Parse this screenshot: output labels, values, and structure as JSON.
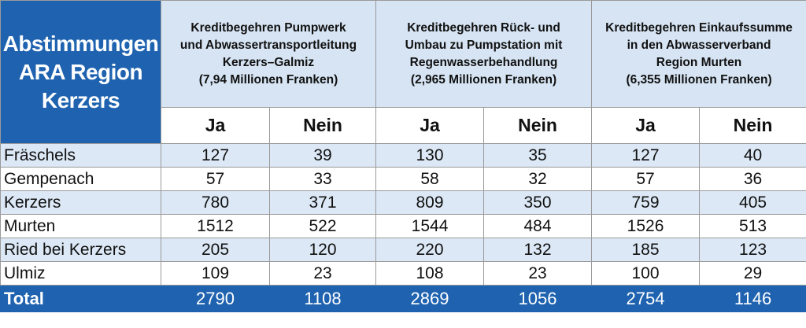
{
  "title": [
    "Abstimmungen",
    "ARA Region",
    "Kerzers"
  ],
  "groups": [
    {
      "lines": [
        "Kreditbegehren Pumpwerk",
        "und Abwassertransportleitung",
        "Kerzers–Galmiz",
        "(7,94 Millionen Franken)"
      ]
    },
    {
      "lines": [
        "Kreditbegehren Rück- und",
        "Umbau zu Pumpstation mit",
        "Regenwasserbehandlung",
        "(2,965 Millionen Franken)"
      ]
    },
    {
      "lines": [
        "Kreditbegehren Einkaufssumme",
        "in den Abwasserverband",
        "Region Murten",
        "(6,355 Millionen Franken)"
      ]
    }
  ],
  "columns": [
    "Ja",
    "Nein",
    "Ja",
    "Nein",
    "Ja",
    "Nein"
  ],
  "rows": [
    {
      "label": "Fräschels",
      "values": [
        "127",
        "39",
        "130",
        "35",
        "127",
        "40"
      ]
    },
    {
      "label": "Gempenach",
      "values": [
        "57",
        "33",
        "58",
        "32",
        "57",
        "36"
      ]
    },
    {
      "label": "Kerzers",
      "values": [
        "780",
        "371",
        "809",
        "350",
        "759",
        "405"
      ]
    },
    {
      "label": "Murten",
      "values": [
        "1512",
        "522",
        "1544",
        "484",
        "1526",
        "513"
      ]
    },
    {
      "label": "Ried bei Kerzers",
      "values": [
        "205",
        "120",
        "220",
        "132",
        "185",
        "123"
      ]
    },
    {
      "label": "Ulmiz",
      "values": [
        "109",
        "23",
        "108",
        "23",
        "100",
        "29"
      ]
    }
  ],
  "total": {
    "label": "Total",
    "values": [
      "2790",
      "1108",
      "2869",
      "1056",
      "2754",
      "1146"
    ]
  },
  "colors": {
    "accent": "#1f63b0",
    "shade": "#dce8f5",
    "header_shade": "#d6e4f3"
  }
}
